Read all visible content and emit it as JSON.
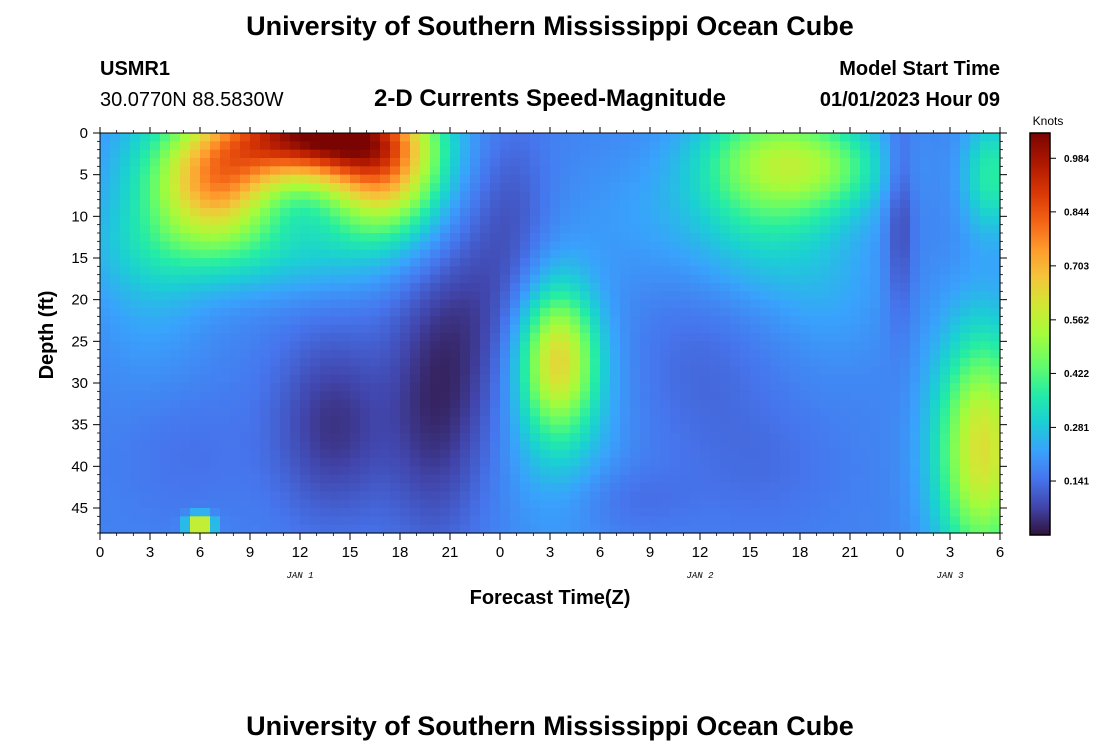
{
  "header": {
    "title": "University of Southern Mississippi Ocean Cube",
    "station_id": "USMR1",
    "station_coords": "30.0770N  88.5830W",
    "chart_title": "2-D Currents Speed-Magnitude",
    "model_start_label": "Model Start Time",
    "model_start_value": "01/01/2023 Hour 09"
  },
  "footer": {
    "title": "University of Southern Mississippi Ocean Cube"
  },
  "chart_data": {
    "type": "heatmap",
    "title": "2-D Currents Speed-Magnitude",
    "xlabel": "Forecast Time(Z)",
    "ylabel": "Depth (ft)",
    "colorbar_label": "Knots",
    "x_tick_labels": [
      "0",
      "3",
      "6",
      "9",
      "12",
      "15",
      "18",
      "21",
      "0",
      "3",
      "6",
      "9",
      "12",
      "15",
      "18",
      "21",
      "0",
      "3",
      "6"
    ],
    "x_range_hours": [
      0,
      54
    ],
    "day_labels": [
      {
        "text": "JAN 1",
        "hour": 12
      },
      {
        "text": "JAN 2",
        "hour": 36
      },
      {
        "text": "JAN 3",
        "hour": 51
      }
    ],
    "y_ticks": [
      0,
      5,
      10,
      15,
      20,
      25,
      30,
      35,
      40,
      45
    ],
    "y_range": [
      0,
      48
    ],
    "y_inverted": true,
    "colorbar_ticks": [
      "0.984",
      "0.844",
      "0.703",
      "0.562",
      "0.422",
      "0.281",
      "0.141"
    ],
    "colorbar_range": [
      0.0,
      1.05
    ],
    "speed_blobs_knots": [
      {
        "hour": 12,
        "depth": 0,
        "sx": 3.5,
        "sy": 4,
        "amp": 0.72
      },
      {
        "hour": 7,
        "depth": 6,
        "sx": 2.5,
        "sy": 5,
        "amp": 0.5
      },
      {
        "hour": 17,
        "depth": 5,
        "sx": 2.5,
        "sy": 5,
        "amp": 0.5
      },
      {
        "hour": 10,
        "depth": 14,
        "sx": 6,
        "sy": 4,
        "amp": 0.12
      },
      {
        "hour": 3,
        "depth": 10,
        "sx": 2.5,
        "sy": 12,
        "amp": 0.1
      },
      {
        "hour": 16,
        "depth": 0,
        "sx": 3,
        "sy": 3,
        "amp": 0.2
      },
      {
        "hour": 14,
        "depth": 35,
        "sx": 2.5,
        "sy": 8,
        "amp": -0.12
      },
      {
        "hour": 20,
        "depth": 32,
        "sx": 2,
        "sy": 12,
        "amp": -0.12
      },
      {
        "hour": 25,
        "depth": 10,
        "sx": 1.5,
        "sy": 8,
        "amp": -0.05
      },
      {
        "hour": 23,
        "depth": 22,
        "sx": 2,
        "sy": 12,
        "amp": -0.08
      },
      {
        "hour": 5,
        "depth": 38,
        "sx": 3,
        "sy": 6,
        "amp": -0.03
      },
      {
        "hour": 6,
        "depth": 47,
        "sx": 0.5,
        "sy": 0.8,
        "amp": 0.6
      },
      {
        "hour": 27.5,
        "depth": 27,
        "sx": 1.6,
        "sy": 6,
        "amp": 0.4
      },
      {
        "hour": 27.5,
        "depth": 35,
        "sx": 2.5,
        "sy": 10,
        "amp": 0.1
      },
      {
        "hour": 34,
        "depth": 10,
        "sx": 4,
        "sy": 6,
        "amp": 0.05
      },
      {
        "hour": 36,
        "depth": 28,
        "sx": 3,
        "sy": 8,
        "amp": -0.04
      },
      {
        "hour": 31,
        "depth": 44,
        "sx": 3,
        "sy": 3,
        "amp": -0.04
      },
      {
        "hour": 40,
        "depth": 3,
        "sx": 3,
        "sy": 5,
        "amp": 0.28
      },
      {
        "hour": 44,
        "depth": 4,
        "sx": 2.5,
        "sy": 4,
        "amp": 0.18
      },
      {
        "hour": 40,
        "depth": 12,
        "sx": 3,
        "sy": 6,
        "amp": 0.1
      },
      {
        "hour": 44,
        "depth": 18,
        "sx": 2.5,
        "sy": 7,
        "amp": 0.05
      },
      {
        "hour": 40,
        "depth": 40,
        "sx": 3,
        "sy": 6,
        "amp": -0.03
      },
      {
        "hour": 48,
        "depth": 10,
        "sx": 0.6,
        "sy": 9,
        "amp": -0.1
      },
      {
        "hour": 53,
        "depth": 38,
        "sx": 2,
        "sy": 10,
        "amp": 0.45
      },
      {
        "hour": 53.5,
        "depth": 5,
        "sx": 1.2,
        "sy": 5,
        "amp": 0.2
      }
    ]
  }
}
